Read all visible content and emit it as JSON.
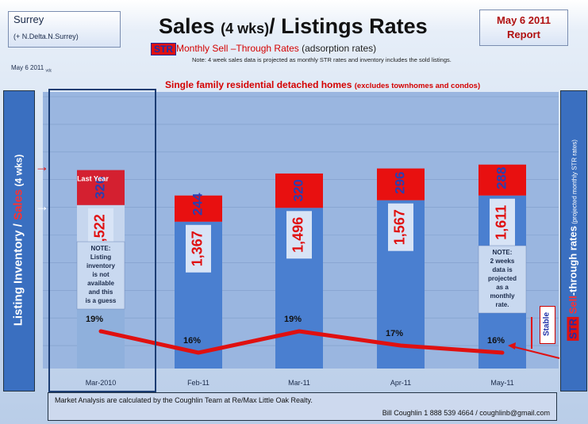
{
  "region": {
    "name": "Surrey",
    "sub": "(+ N.Delta.N.Surrey)"
  },
  "small_date": "May 6 2011",
  "small_date_tag": "vdc",
  "title": {
    "main": "Sales",
    "paren": "(4 wks)",
    "rest": "/ Listings Rates"
  },
  "subtitle": {
    "badge": "STR",
    "text": "Monthly Sell –Through Rates",
    "paren": "(adsorption rates)"
  },
  "note_top": "Note: 4 week sales data is projected  as monthly STR rates and inventory includes the sold listings.",
  "report": {
    "line1": "May 6 2011",
    "line2": "Report"
  },
  "banner": {
    "main": "Single family residential detached homes",
    "paren": "(excludes townhomes  and condos)"
  },
  "left_axis": {
    "part1": "Listing Inventory / ",
    "part2": "Sales",
    "part3": " (4 wks)"
  },
  "right_axis": {
    "badge": "STR",
    "part1": " Sell",
    "part2": "-through rates",
    "part3": "  (projected monthly STR rates)"
  },
  "stable_label": "Stable",
  "footer": {
    "line1": "Market Analysis are calculated by  the  Coughlin Team at Re/Max Little Oak Realty.",
    "line2": "Bill Coughlin 1 888 539 4664 / coughlinb@gmail.com"
  },
  "colors": {
    "sales": "#e81010",
    "sales_last_year": "#d42030",
    "inventory_top": "#c7d9f2",
    "inventory": "#4a7fd0",
    "line": "#e01010",
    "accent_text": "#1f2fa8"
  },
  "chart_data": {
    "type": "bar",
    "categories": [
      "Mar-2010",
      "Feb-11",
      "Mar-11",
      "Apr-11",
      "May-11"
    ],
    "series": [
      {
        "name": "Listing Inventory",
        "values": [
          1522,
          1367,
          1496,
          1567,
          1611
        ]
      },
      {
        "name": "Sales",
        "values": [
          326,
          244,
          320,
          296,
          288
        ]
      },
      {
        "name": "STR",
        "values": [
          19,
          16,
          19,
          17,
          16
        ],
        "unit": "%"
      }
    ],
    "inventory_labels": [
      "1,522",
      "1,367",
      "1,496",
      "1,567",
      "1,611"
    ],
    "sales_labels": [
      "326",
      "244",
      "320",
      "296",
      "288"
    ],
    "str_labels": [
      "19%",
      "16%",
      "19%",
      "17%",
      "16%"
    ],
    "last_year_label": "Last Year",
    "notes": [
      {
        "category": "Mar-2010",
        "lines": [
          "NOTE:",
          "Listing",
          "inventory",
          "is not",
          "available",
          "and this",
          "is a guess"
        ]
      },
      {
        "category": "May-11",
        "lines": [
          "NOTE:",
          "2 weeks",
          "data is",
          "projected",
          "as a",
          "monthly",
          "rate."
        ]
      }
    ],
    "grid": true
  }
}
